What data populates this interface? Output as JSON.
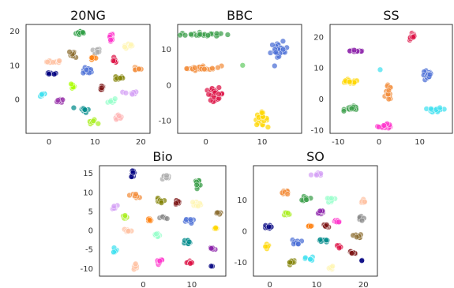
{
  "chart_data": [
    {
      "type": "scatter",
      "title": "20NG",
      "xlim": [
        -5,
        22
      ],
      "ylim": [
        -10,
        22
      ],
      "xticks": [
        0,
        10,
        20
      ],
      "yticks": [
        0,
        10,
        20
      ],
      "grid": false,
      "legend": "none",
      "clusters": [
        {
          "color": "#2e9e44",
          "x": 7,
          "y": 19.5,
          "sx": 1.0,
          "sy": 0.6,
          "n": 12
        },
        {
          "color": "#ff33cc",
          "x": 13.5,
          "y": 18.5,
          "sx": 0.4,
          "sy": 1.0,
          "n": 10
        },
        {
          "color": "#fff5b3",
          "x": 17.5,
          "y": 15.5,
          "sx": 1.1,
          "sy": 0.7,
          "n": 10
        },
        {
          "color": "#ffc1a1",
          "x": 1,
          "y": 11,
          "sx": 1.4,
          "sy": 0.4,
          "n": 12
        },
        {
          "color": "#8c6d31",
          "x": 5.5,
          "y": 13.3,
          "sx": 0.9,
          "sy": 0.9,
          "n": 10
        },
        {
          "color": "#aaaaaa",
          "x": 10,
          "y": 14,
          "sx": 1.1,
          "sy": 0.9,
          "n": 10
        },
        {
          "color": "#ff7f0e",
          "x": 9.6,
          "y": 12,
          "sx": 0.6,
          "sy": 0.5,
          "n": 6
        },
        {
          "color": "#dd1144",
          "x": 14.3,
          "y": 11.4,
          "sx": 0.5,
          "sy": 0.7,
          "n": 7
        },
        {
          "color": "#f28e3b",
          "x": 19,
          "y": 9,
          "sx": 0.9,
          "sy": 0.5,
          "n": 9
        },
        {
          "color": "#000080",
          "x": 0.4,
          "y": 7.5,
          "sx": 1.3,
          "sy": 0.3,
          "n": 10
        },
        {
          "color": "#4a6ed6",
          "x": 8.5,
          "y": 8.4,
          "sx": 1.0,
          "sy": 0.8,
          "n": 12
        },
        {
          "color": "#808000",
          "x": 15.2,
          "y": 6.3,
          "sx": 0.8,
          "sy": 0.6,
          "n": 10
        },
        {
          "color": "#d4a0f5",
          "x": 17.8,
          "y": 1.8,
          "sx": 1.4,
          "sy": 0.5,
          "n": 11
        },
        {
          "color": "#aaff00",
          "x": 5,
          "y": 4,
          "sx": 0.9,
          "sy": 0.8,
          "n": 8
        },
        {
          "color": "#7b1414",
          "x": 11.5,
          "y": 3.4,
          "sx": 0.4,
          "sy": 0.9,
          "n": 7
        },
        {
          "color": "#40e0f0",
          "x": -1.5,
          "y": 1.5,
          "sx": 0.8,
          "sy": 0.9,
          "n": 8
        },
        {
          "color": "#9933aa",
          "x": 2.8,
          "y": -0.4,
          "sx": 0.9,
          "sy": 0.7,
          "n": 9
        },
        {
          "color": "#99ffcc",
          "x": 13.5,
          "y": -0.4,
          "sx": 1.1,
          "sy": 0.7,
          "n": 9
        },
        {
          "color": "#008b8b",
          "x": 7.5,
          "y": -3,
          "sx": 1.1,
          "sy": 0.8,
          "n": 10
        },
        {
          "color": "#ffb3b3",
          "x": 15,
          "y": -5,
          "sx": 0.6,
          "sy": 0.8,
          "n": 8
        },
        {
          "color": "#aaee22",
          "x": 9.5,
          "y": -6.6,
          "sx": 0.8,
          "sy": 0.5,
          "n": 9
        }
      ]
    },
    {
      "type": "scatter",
      "title": "BBC",
      "xlim": [
        -5,
        17
      ],
      "ylim": [
        -13.5,
        17
      ],
      "xticks": [
        0,
        10
      ],
      "yticks": [
        -10,
        0,
        10
      ],
      "grid": false,
      "legend": "none",
      "clusters": [
        {
          "color": "#3a9e4a",
          "x": -1,
          "y": 14.2,
          "sx": 3.2,
          "sy": 0.5,
          "n": 28
        },
        {
          "color": "#f28e3b",
          "x": -0.8,
          "y": 4.8,
          "sx": 3.2,
          "sy": 0.6,
          "n": 28
        },
        {
          "color": "#4a6ed6",
          "x": 13,
          "y": 9.5,
          "sx": 1.4,
          "sy": 2.2,
          "n": 24
        },
        {
          "color": "#dd1144",
          "x": 1.6,
          "y": -2.5,
          "sx": 1.4,
          "sy": 1.5,
          "n": 24
        },
        {
          "color": "#ffd700",
          "x": 9.8,
          "y": -9.5,
          "sx": 1.0,
          "sy": 1.6,
          "n": 22
        },
        {
          "color": "#66cc66",
          "x": 6.5,
          "y": 5.5,
          "sx": 0.1,
          "sy": 0.1,
          "n": 1
        }
      ]
    },
    {
      "type": "scatter",
      "title": "SS",
      "xlim": [
        -12,
        18
      ],
      "ylim": [
        -11,
        24
      ],
      "xticks": [
        -10,
        0,
        10
      ],
      "yticks": [
        -10,
        0,
        10,
        20
      ],
      "grid": false,
      "legend": "none",
      "clusters": [
        {
          "color": "#dd1144",
          "x": 8.2,
          "y": 20.2,
          "sx": 0.6,
          "sy": 1.2,
          "n": 20
        },
        {
          "color": "#8e24aa",
          "x": -5.3,
          "y": 15.5,
          "sx": 1.6,
          "sy": 0.4,
          "n": 22
        },
        {
          "color": "#ffd700",
          "x": -7.2,
          "y": 5.5,
          "sx": 2.0,
          "sy": 0.5,
          "n": 24
        },
        {
          "color": "#4a6ed6",
          "x": 11.8,
          "y": 7.5,
          "sx": 1.0,
          "sy": 1.6,
          "n": 22
        },
        {
          "color": "#f28e3b",
          "x": 2.3,
          "y": 2,
          "sx": 0.6,
          "sy": 2.2,
          "n": 18
        },
        {
          "color": "#3a9e4a",
          "x": -6.5,
          "y": -3,
          "sx": 1.7,
          "sy": 0.6,
          "n": 20
        },
        {
          "color": "#40e0f0",
          "x": 14,
          "y": -3.5,
          "sx": 1.5,
          "sy": 0.7,
          "n": 20
        },
        {
          "color": "#ff33cc",
          "x": 1.5,
          "y": -8.7,
          "sx": 1.5,
          "sy": 0.6,
          "n": 22
        },
        {
          "color": "#40e0f0",
          "x": 0.3,
          "y": 9.5,
          "sx": 0.1,
          "sy": 0.1,
          "n": 1
        }
      ]
    },
    {
      "type": "scatter",
      "title": "Bio",
      "xlim": [
        -9,
        17
      ],
      "ylim": [
        -12,
        17
      ],
      "xticks": [
        0,
        10
      ],
      "yticks": [
        -10,
        -5,
        0,
        5,
        10,
        15
      ],
      "grid": false,
      "legend": "none",
      "clusters": [
        {
          "color": "#000080",
          "x": -2.1,
          "y": 15,
          "sx": 0.4,
          "sy": 0.8,
          "n": 12
        },
        {
          "color": "#aaaaaa",
          "x": 4.6,
          "y": 14,
          "sx": 0.8,
          "sy": 0.7,
          "n": 10
        },
        {
          "color": "#3a9e4a",
          "x": 11.3,
          "y": 12.5,
          "sx": 0.7,
          "sy": 0.7,
          "n": 10
        },
        {
          "color": "#f28e3b",
          "x": -1.8,
          "y": 9.2,
          "sx": 0.8,
          "sy": 0.6,
          "n": 10
        },
        {
          "color": "#808000",
          "x": 3.3,
          "y": 7.5,
          "sx": 0.6,
          "sy": 0.8,
          "n": 9
        },
        {
          "color": "#7b1414",
          "x": 7,
          "y": 7.3,
          "sx": 0.6,
          "sy": 0.7,
          "n": 9
        },
        {
          "color": "#fff5b3",
          "x": 11,
          "y": 7,
          "sx": 0.9,
          "sy": 0.5,
          "n": 9
        },
        {
          "color": "#8c6d31",
          "x": 15.3,
          "y": 4.5,
          "sx": 0.5,
          "sy": 0.6,
          "n": 7
        },
        {
          "color": "#d4a0f5",
          "x": -6,
          "y": 6,
          "sx": 0.6,
          "sy": 0.5,
          "n": 7
        },
        {
          "color": "#aaee22",
          "x": -3.8,
          "y": 3.5,
          "sx": 0.6,
          "sy": 0.5,
          "n": 8
        },
        {
          "color": "#ff7f0e",
          "x": 1.2,
          "y": 2.6,
          "sx": 0.5,
          "sy": 0.5,
          "n": 6
        },
        {
          "color": "#888888",
          "x": 4.2,
          "y": 3.3,
          "sx": 0.7,
          "sy": 0.4,
          "n": 7
        },
        {
          "color": "#4a6ed6",
          "x": 9.6,
          "y": 2.5,
          "sx": 0.8,
          "sy": 0.6,
          "n": 9
        },
        {
          "color": "#ffd700",
          "x": 15,
          "y": 0.5,
          "sx": 0.6,
          "sy": 0.4,
          "n": 7
        },
        {
          "color": "#ffc1a1",
          "x": -3.3,
          "y": 0,
          "sx": 0.9,
          "sy": 0.6,
          "n": 10
        },
        {
          "color": "#99ffcc",
          "x": 2.8,
          "y": -1.3,
          "sx": 0.6,
          "sy": 0.7,
          "n": 8
        },
        {
          "color": "#008b8b",
          "x": 9.4,
          "y": -3,
          "sx": 1.0,
          "sy": 0.6,
          "n": 10
        },
        {
          "color": "#8e24aa",
          "x": 14.1,
          "y": -4.8,
          "sx": 0.6,
          "sy": 0.5,
          "n": 7
        },
        {
          "color": "#40e0f0",
          "x": -5.8,
          "y": -5,
          "sx": 0.4,
          "sy": 0.9,
          "n": 8
        },
        {
          "color": "#ff33cc",
          "x": 3.2,
          "y": -8,
          "sx": 0.8,
          "sy": 0.6,
          "n": 10
        },
        {
          "color": "#ffc1a1",
          "x": -1.5,
          "y": -9.5,
          "sx": 0.6,
          "sy": 0.8,
          "n": 8
        },
        {
          "color": "#dd1144",
          "x": 9.6,
          "y": -8.5,
          "sx": 0.6,
          "sy": 0.5,
          "n": 8
        },
        {
          "color": "#000080",
          "x": 14.3,
          "y": -9.4,
          "sx": 0.2,
          "sy": 0.2,
          "n": 2
        }
      ]
    },
    {
      "type": "scatter",
      "title": "SO",
      "xlim": [
        -3.5,
        23
      ],
      "ylim": [
        -14.5,
        21
      ],
      "xticks": [
        0,
        10,
        20
      ],
      "yticks": [
        -10,
        0,
        10
      ],
      "grid": false,
      "legend": "none",
      "clusters": [
        {
          "color": "#d4a0f5",
          "x": 10,
          "y": 18.2,
          "sx": 1.0,
          "sy": 0.5,
          "n": 9
        },
        {
          "color": "#f28e3b",
          "x": 3.2,
          "y": 12.5,
          "sx": 1.0,
          "sy": 0.8,
          "n": 10
        },
        {
          "color": "#3a9e4a",
          "x": 7.8,
          "y": 10.5,
          "sx": 0.7,
          "sy": 0.8,
          "n": 9
        },
        {
          "color": "#99ffcc",
          "x": 13.2,
          "y": 10,
          "sx": 0.6,
          "sy": 0.9,
          "n": 8
        },
        {
          "color": "#ffc1a1",
          "x": 20,
          "y": 10,
          "sx": 0.5,
          "sy": 0.8,
          "n": 7
        },
        {
          "color": "#aaee22",
          "x": 3.5,
          "y": 5.5,
          "sx": 0.7,
          "sy": 0.6,
          "n": 8
        },
        {
          "color": "#8e24aa",
          "x": 10.8,
          "y": 6,
          "sx": 0.8,
          "sy": 0.8,
          "n": 9
        },
        {
          "color": "#ff33cc",
          "x": 14.2,
          "y": 3.2,
          "sx": 1.0,
          "sy": 0.6,
          "n": 9
        },
        {
          "color": "#888888",
          "x": 19.2,
          "y": 4,
          "sx": 0.8,
          "sy": 0.6,
          "n": 8
        },
        {
          "color": "#000080",
          "x": -0.6,
          "y": 1.2,
          "sx": 0.7,
          "sy": 0.6,
          "n": 8
        },
        {
          "color": "#ff7f0e",
          "x": 8.5,
          "y": 1.5,
          "sx": 0.5,
          "sy": 0.5,
          "n": 6
        },
        {
          "color": "#7b1414",
          "x": 12,
          "y": 1.5,
          "sx": 0.6,
          "sy": 0.6,
          "n": 7
        },
        {
          "color": "#8c6d31",
          "x": 18.6,
          "y": -1.5,
          "sx": 0.8,
          "sy": 0.6,
          "n": 8
        },
        {
          "color": "#4a6ed6",
          "x": 5.7,
          "y": -3.6,
          "sx": 0.9,
          "sy": 0.7,
          "n": 9
        },
        {
          "color": "#ffd700",
          "x": -0.6,
          "y": -5,
          "sx": 0.5,
          "sy": 0.8,
          "n": 8
        },
        {
          "color": "#008b8b",
          "x": 11.5,
          "y": -3,
          "sx": 0.8,
          "sy": 0.7,
          "n": 9
        },
        {
          "color": "#dd1144",
          "x": 14.6,
          "y": -5,
          "sx": 0.5,
          "sy": 0.5,
          "n": 5
        },
        {
          "color": "#7b1414",
          "x": 17.8,
          "y": -6.8,
          "sx": 0.6,
          "sy": 0.7,
          "n": 7
        },
        {
          "color": "#808000",
          "x": 4.5,
          "y": -10,
          "sx": 0.9,
          "sy": 0.7,
          "n": 9
        },
        {
          "color": "#40e0f0",
          "x": 8.5,
          "y": -9,
          "sx": 0.8,
          "sy": 0.6,
          "n": 8
        },
        {
          "color": "#fff5b3",
          "x": 13,
          "y": -12,
          "sx": 0.9,
          "sy": 0.6,
          "n": 9
        },
        {
          "color": "#000080",
          "x": 19.8,
          "y": -9.5,
          "sx": 0.2,
          "sy": 0.2,
          "n": 2
        }
      ]
    }
  ]
}
